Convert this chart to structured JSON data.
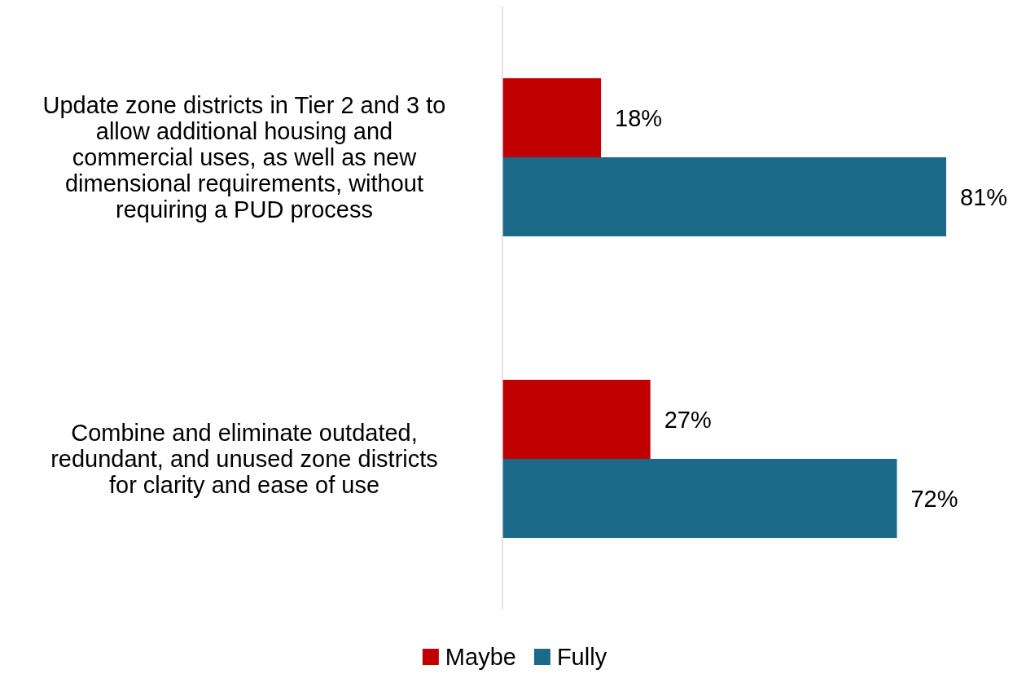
{
  "chart_data": {
    "type": "bar",
    "orientation": "horizontal",
    "categories": [
      "Update zone districts in Tier 2 and 3 to allow additional housing and commercial uses, as well as new dimensional requirements, without requiring a PUD process",
      "Combine and eliminate outdated, redundant, and unused zone districts for clarity and ease of use"
    ],
    "series": [
      {
        "name": "Maybe",
        "color": "#c00000",
        "values": [
          18,
          27
        ],
        "value_labels": [
          "18%",
          "27%"
        ]
      },
      {
        "name": "Fully",
        "color": "#1c6a89",
        "values": [
          81,
          72
        ],
        "value_labels": [
          "81%",
          "72%"
        ]
      }
    ],
    "legend": "bottom"
  }
}
